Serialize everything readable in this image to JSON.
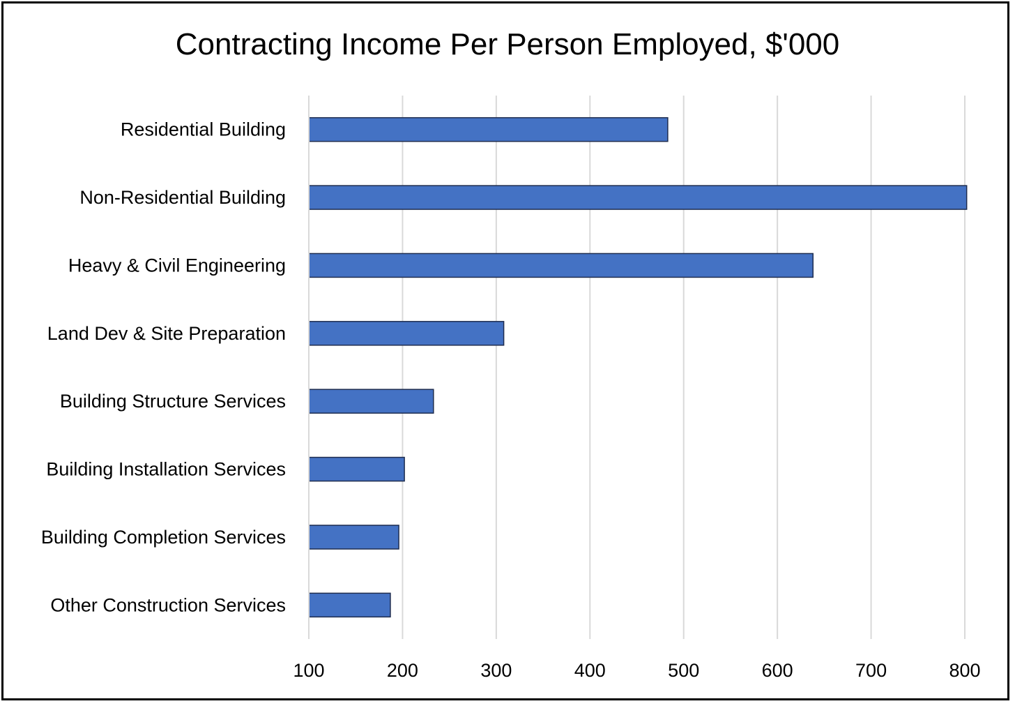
{
  "chart_data": {
    "type": "bar",
    "orientation": "horizontal",
    "title": "Contracting Income Per Person Employed, $'000",
    "categories": [
      "Residential Building",
      "Non-Residential Building",
      "Heavy & Civil Engineering",
      "Land Dev & Site Preparation",
      "Building Structure Services",
      "Building Installation Services",
      "Building Completion Services",
      "Other Construction Services"
    ],
    "values": [
      483,
      802,
      638,
      308,
      233,
      202,
      196,
      187
    ],
    "xlim": [
      100,
      800
    ],
    "xticks": [
      100,
      200,
      300,
      400,
      500,
      600,
      700,
      800
    ],
    "grid": "vertical",
    "legend": "none",
    "bar_color": "#4472C4",
    "bar_edge_color": "#1F2D4F",
    "grid_color": "#D9D9D9"
  }
}
